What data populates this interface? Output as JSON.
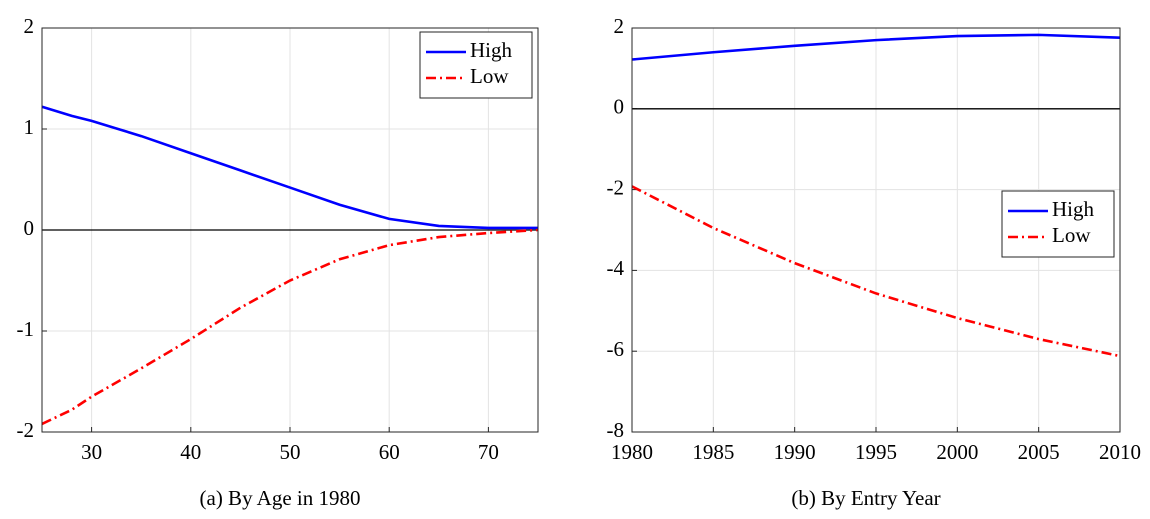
{
  "chart_data": [
    {
      "type": "line",
      "caption": "(a) By Age in 1980",
      "x": [
        25,
        28,
        30,
        35,
        40,
        45,
        50,
        55,
        60,
        65,
        70,
        75
      ],
      "series": [
        {
          "name": "High",
          "color": "#0000ff",
          "dash": "solid",
          "values": [
            1.22,
            1.13,
            1.08,
            0.93,
            0.76,
            0.59,
            0.42,
            0.25,
            0.11,
            0.04,
            0.02,
            0.02
          ]
        },
        {
          "name": "Low",
          "color": "#ff0000",
          "dash": "dashdot",
          "values": [
            -1.92,
            -1.78,
            -1.65,
            -1.37,
            -1.08,
            -0.77,
            -0.5,
            -0.29,
            -0.15,
            -0.07,
            -0.03,
            0.0
          ]
        }
      ],
      "xlim": [
        25,
        75
      ],
      "xticks": [
        30,
        40,
        50,
        60,
        70
      ],
      "ylim": [
        -2,
        2
      ],
      "yticks": [
        -2,
        -1,
        0,
        1,
        2
      ],
      "grid": true,
      "reference_line": 0,
      "legend": "upper right"
    },
    {
      "type": "line",
      "caption": "(b) By Entry Year",
      "x": [
        1980,
        1985,
        1990,
        1995,
        2000,
        2005,
        2010
      ],
      "series": [
        {
          "name": "High",
          "color": "#0000ff",
          "dash": "solid",
          "values": [
            1.22,
            1.4,
            1.56,
            1.7,
            1.8,
            1.83,
            1.76
          ]
        },
        {
          "name": "Low",
          "color": "#ff0000",
          "dash": "dashdot",
          "values": [
            -1.92,
            -2.95,
            -3.82,
            -4.57,
            -5.18,
            -5.7,
            -6.12
          ]
        }
      ],
      "xlim": [
        1980,
        2010
      ],
      "xticks": [
        1980,
        1985,
        1990,
        1995,
        2000,
        2005,
        2010
      ],
      "ylim": [
        -8,
        2
      ],
      "yticks": [
        -8,
        -6,
        -4,
        -2,
        0,
        2
      ],
      "grid": true,
      "reference_line": 0,
      "legend": "center right"
    }
  ]
}
